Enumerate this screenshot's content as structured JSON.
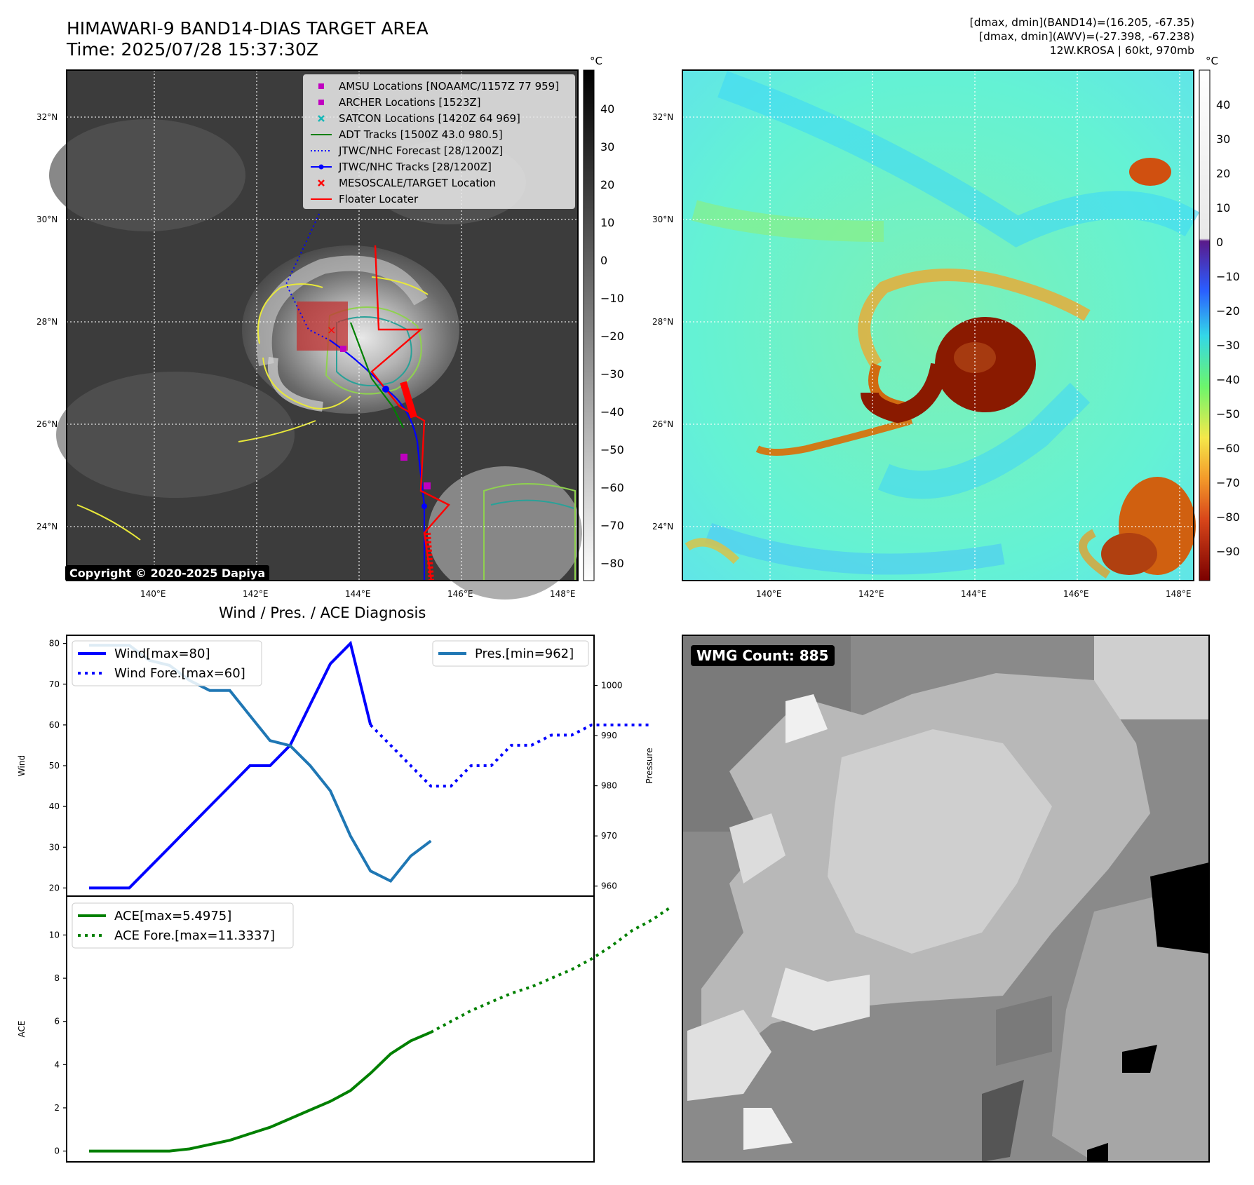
{
  "header": {
    "title_line1": "HIMAWARI-9 BAND14-DIAS TARGET AREA",
    "title_line2": "Time: 2025/07/28 15:37:30Z",
    "info_line1": "[dmax, dmin](BAND14)=(16.205, -67.35)",
    "info_line2": "[dmax, dmin](AWV)=(-27.398, -67.238)",
    "info_line3": "12W.KROSA | 60kt, 970mb"
  },
  "map_axes": {
    "lat_labels": [
      "32°N",
      "30°N",
      "28°N",
      "26°N",
      "24°N"
    ],
    "lon_labels": [
      "140°E",
      "142°E",
      "144°E",
      "146°E",
      "148°E"
    ]
  },
  "left_map": {
    "colorbar_unit": "°C",
    "colorbar_ticks": [
      "40",
      "30",
      "20",
      "10",
      "0",
      "−10",
      "−20",
      "−30",
      "−40",
      "−50",
      "−60",
      "−70",
      "−80"
    ],
    "copyright": "Copyright © 2020-2025 Dapiya",
    "legend": [
      {
        "label": "AMSU Locations [NOAAMC/1157Z 77 959]",
        "icon": "magenta-square",
        "color": "#c000c0"
      },
      {
        "label": "ARCHER Locations [1523Z]",
        "icon": "magenta-square",
        "color": "#c000c0"
      },
      {
        "label": "SATCON Locations [1420Z 64 969]",
        "icon": "teal-x",
        "color": "#17b8b8"
      },
      {
        "label": "ADT Tracks [1500Z 43.0 980.5]",
        "icon": "green-line",
        "color": "#008000"
      },
      {
        "label": "JTWC/NHC Forecast [28/1200Z]",
        "icon": "blue-dotted-line",
        "color": "#0000ff"
      },
      {
        "label": "JTWC/NHC Tracks [28/1200Z]",
        "icon": "blue-line-dot",
        "color": "#0000ff"
      },
      {
        "label": "MESOSCALE/TARGET Location",
        "icon": "red-x",
        "color": "#ff0000"
      },
      {
        "label": "Floater Locater",
        "icon": "red-line",
        "color": "#ff0000"
      }
    ]
  },
  "right_map": {
    "colorbar_unit": "°C",
    "colorbar_ticks": [
      "40",
      "30",
      "20",
      "10",
      "0",
      "−10",
      "−20",
      "−30",
      "−40",
      "−50",
      "−60",
      "−70",
      "−80",
      "−90"
    ]
  },
  "bottom_left": {
    "title": "Wind / Pres. / ACE Diagnosis"
  },
  "bottom_right": {
    "badge": "WMG Count: 885"
  },
  "chart_data": [
    {
      "type": "line",
      "title": "Wind / Pres. / ACE Diagnosis",
      "ylabel": "Wind",
      "y2label": "Pressure",
      "ylim": [
        18,
        82
      ],
      "y2lim": [
        958,
        1010
      ],
      "yticks": [
        20,
        30,
        40,
        50,
        60,
        70,
        80
      ],
      "y2ticks": [
        960,
        970,
        980,
        990,
        1000
      ],
      "x_index": [
        0,
        1,
        2,
        3,
        4,
        5,
        6,
        7,
        8,
        9,
        10,
        11,
        12,
        13,
        14,
        15,
        16,
        17,
        18,
        19,
        20,
        21,
        22,
        23,
        24
      ],
      "series": [
        {
          "name": "Wind[max=80]",
          "color": "#0000ff",
          "style": "solid",
          "values": [
            20,
            20,
            20,
            25,
            30,
            35,
            40,
            45,
            50,
            50,
            55,
            65,
            75,
            80,
            60
          ]
        },
        {
          "name": "Wind Fore.[max=60]",
          "color": "#0000ff",
          "style": "dotted",
          "x_start": 14,
          "values": [
            60,
            55,
            50,
            45,
            45,
            50,
            50,
            55,
            55,
            57.5,
            57.5,
            60,
            60,
            60,
            60
          ]
        },
        {
          "name": "Pres.[min=962]",
          "color": "#1f77b4",
          "style": "solid",
          "axis": "right",
          "values": [
            1008,
            1008,
            1008,
            1005,
            1004,
            1001,
            999,
            999,
            994,
            989,
            988,
            984,
            979,
            970,
            963,
            961,
            966,
            969
          ]
        }
      ],
      "legend": [
        "Wind[max=80]",
        "Wind Fore.[max=60]",
        "Pres.[min=962]"
      ]
    },
    {
      "type": "line",
      "ylabel": "ACE",
      "ylim": [
        -0.5,
        11.8
      ],
      "yticks": [
        0,
        2,
        4,
        6,
        8,
        10
      ],
      "series": [
        {
          "name": "ACE[max=5.4975]",
          "color": "#008000",
          "style": "solid",
          "values": [
            0,
            0,
            0,
            0,
            0,
            0.1,
            0.3,
            0.5,
            0.8,
            1.1,
            1.5,
            1.9,
            2.3,
            2.8,
            3.6,
            4.5,
            5.1,
            5.4975
          ]
        },
        {
          "name": "ACE Fore.[max=11.3337]",
          "color": "#008000",
          "style": "dotted",
          "x_start": 17,
          "values": [
            5.4975,
            6.0,
            6.5,
            6.9,
            7.3,
            7.6,
            8.0,
            8.4,
            8.9,
            9.5,
            10.2,
            10.7,
            11.3337
          ]
        }
      ],
      "legend": [
        "ACE[max=5.4975]",
        "ACE Fore.[max=11.3337]"
      ]
    }
  ]
}
